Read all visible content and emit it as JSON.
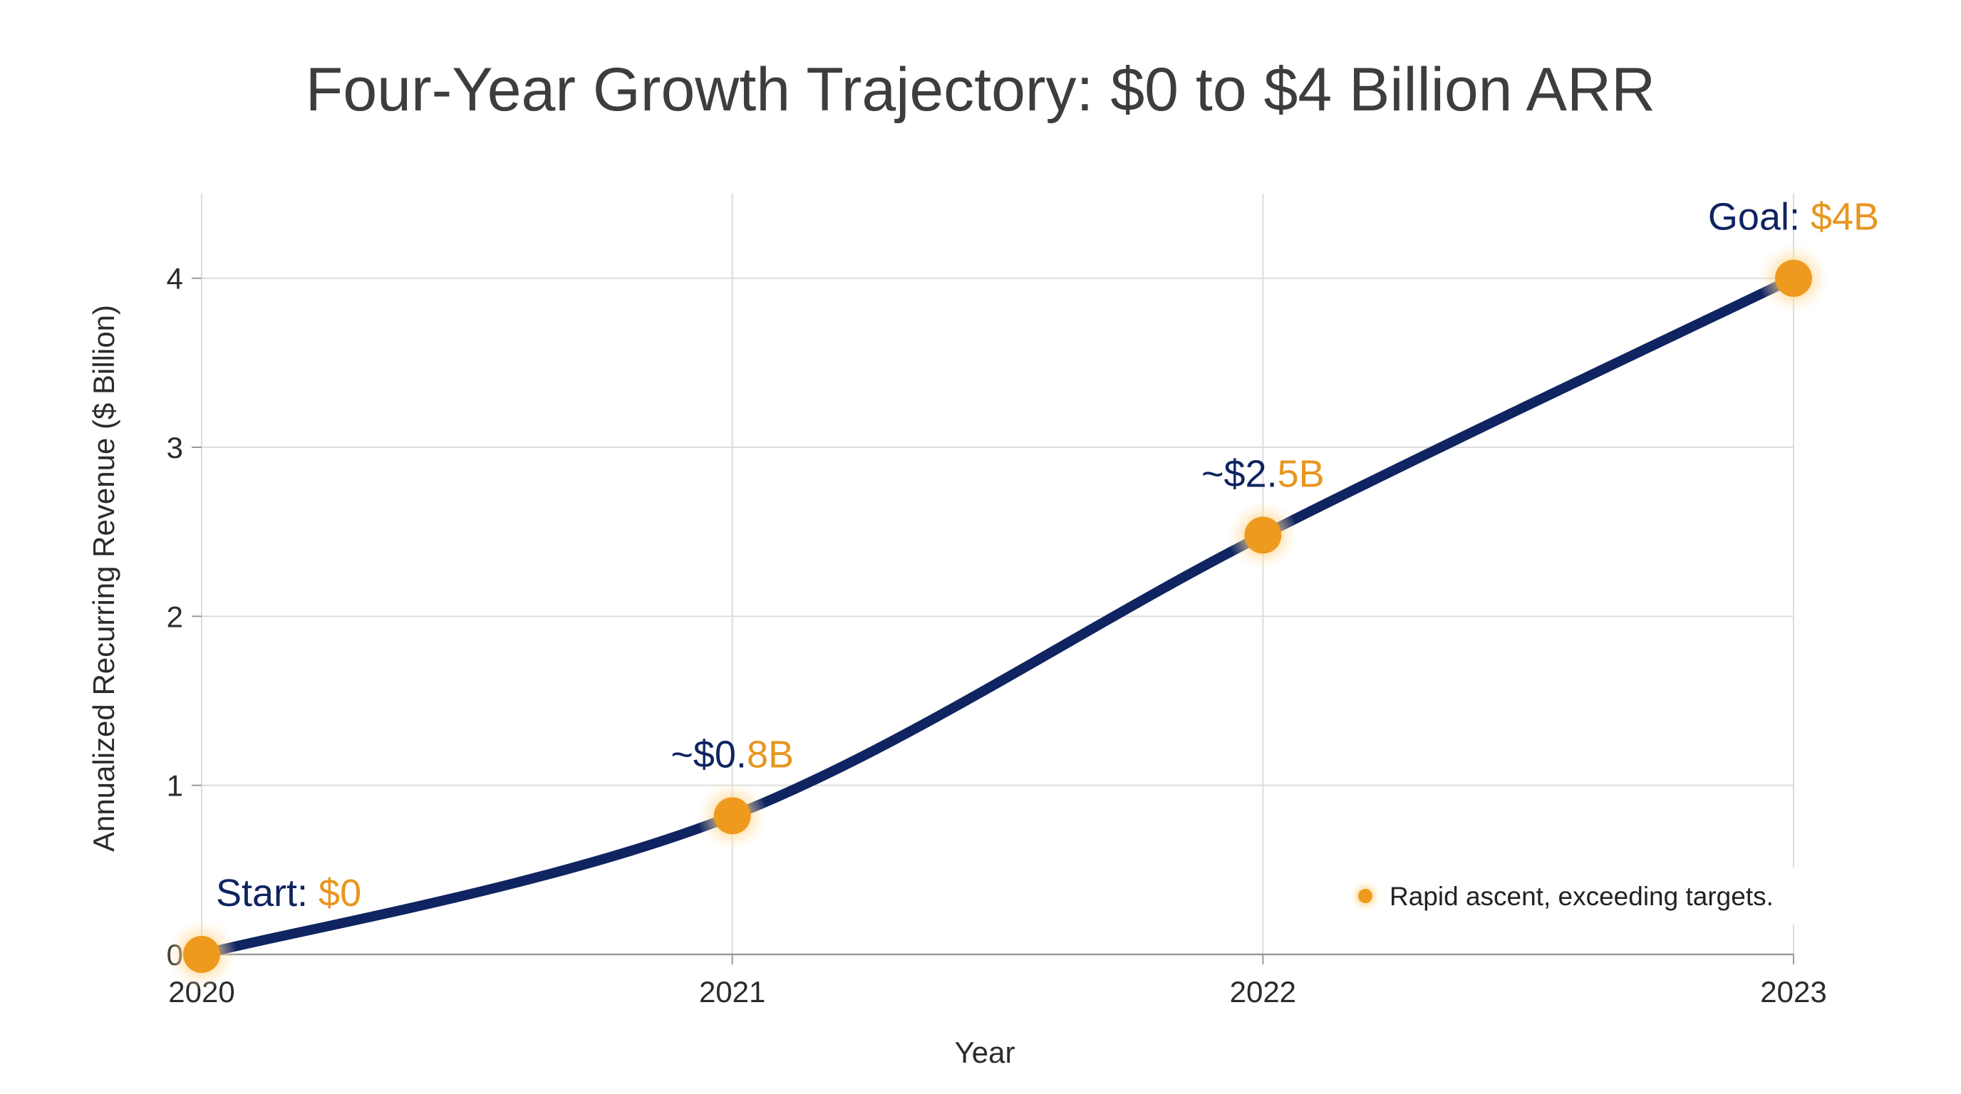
{
  "chart_data": {
    "type": "line",
    "title": "Four-Year Growth Trajectory: $0 to $4 Billion ARR",
    "xlabel": "Year",
    "ylabel": "Annualized Recurring Revenue ($ Billion)",
    "x": [
      "2020",
      "2021",
      "2022",
      "2023"
    ],
    "y_ticks": [
      "0",
      "1",
      "2",
      "3",
      "4"
    ],
    "ylim": [
      0,
      4.5
    ],
    "grid": true,
    "series": [
      {
        "values": [
          0,
          0.82,
          2.48,
          4.0
        ]
      }
    ],
    "annotations": [
      {
        "prefix": "Start: ",
        "suffix": "$0"
      },
      {
        "prefix": "~$0.",
        "suffix": "8B"
      },
      {
        "prefix": "~$2.",
        "suffix": "5B"
      },
      {
        "prefix": "Goal: ",
        "suffix": "$4B"
      }
    ],
    "legend": {
      "label": "Rapid ascent, exceeding targets.",
      "position": "bottom-right"
    },
    "colors": {
      "line": "#0f2460",
      "marker": "#ee9a1f",
      "glow": "#ffd58a",
      "prefix": "#0f2460",
      "suffix": "#e8961e",
      "grid": "#dcdcdc",
      "axis": "#9a9a9a"
    }
  }
}
